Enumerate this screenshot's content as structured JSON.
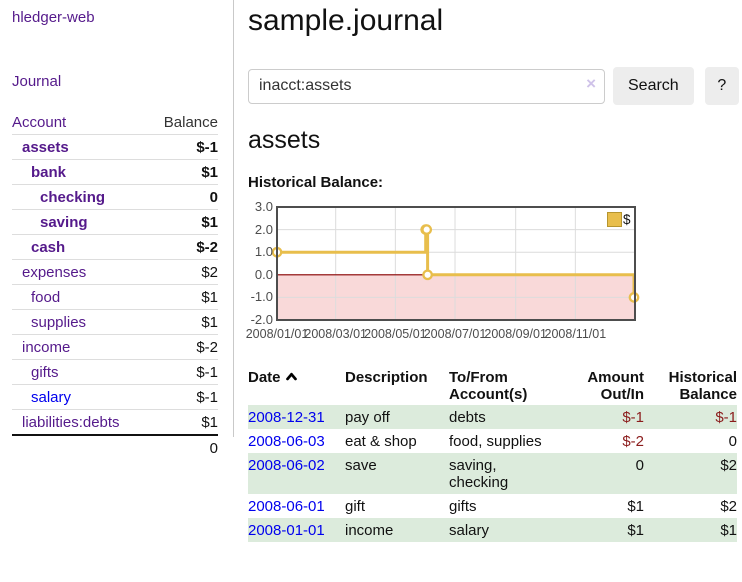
{
  "brand": {
    "label": "hledger-web"
  },
  "nav": {
    "journal": "Journal"
  },
  "sidebar": {
    "header": {
      "account": "Account",
      "balance": "Balance"
    },
    "accounts": [
      {
        "name": "assets",
        "indent": 1,
        "bold": true,
        "balance": "$-1",
        "balance_style": "neg-strong"
      },
      {
        "name": "bank",
        "indent": 2,
        "bold": true,
        "balance": "$1",
        "balance_style": "pos"
      },
      {
        "name": "checking",
        "indent": 3,
        "bold": true,
        "balance": "0",
        "balance_style": "pos"
      },
      {
        "name": "saving",
        "indent": 3,
        "bold": true,
        "balance": "$1",
        "balance_style": "pos"
      },
      {
        "name": "cash",
        "indent": 2,
        "bold": true,
        "balance": "$-2",
        "balance_style": "neg-strong"
      },
      {
        "name": "expenses",
        "indent": 1,
        "bold": false,
        "balance": "$2",
        "balance_style": "pos"
      },
      {
        "name": "food",
        "indent": 2,
        "bold": false,
        "balance": "$1",
        "balance_style": "pos"
      },
      {
        "name": "supplies",
        "indent": 2,
        "bold": false,
        "balance": "$1",
        "balance_style": "pos"
      },
      {
        "name": "income",
        "indent": 1,
        "bold": false,
        "balance": "$-2",
        "balance_style": "neg-soft"
      },
      {
        "name": "gifts",
        "indent": 2,
        "bold": false,
        "balance": "$-1",
        "balance_style": "neg-soft"
      },
      {
        "name": "salary",
        "indent": 2,
        "bold": false,
        "balance": "$-1",
        "balance_style": "neg-soft",
        "unvisited": true
      },
      {
        "name": "liabilities:debts",
        "indent": 1,
        "bold": false,
        "balance": "$1",
        "balance_style": "pos"
      }
    ],
    "total": "0"
  },
  "header": {
    "title": "sample.journal"
  },
  "search": {
    "value": "inacct:assets",
    "clear": "×",
    "button_label": "Search",
    "help_label": "?"
  },
  "account_view": {
    "title": "assets",
    "chart_title": "Historical Balance:"
  },
  "chart_data": {
    "type": "line",
    "step": true,
    "title": "Historical Balance",
    "legend": [
      {
        "label": "$",
        "color": "#e8be4c",
        "swatch": "square-icon"
      }
    ],
    "x_domain": [
      "2008-01-01",
      "2009-01-01"
    ],
    "ylim": [
      -2,
      3
    ],
    "yticks": [
      3.0,
      2.0,
      1.0,
      0.0,
      -1.0,
      -2.0
    ],
    "xticks": [
      {
        "date": "2008-01-01",
        "label": "2008/01/01"
      },
      {
        "date": "2008-03-01",
        "label": "2008/03/01"
      },
      {
        "date": "2008-05-01",
        "label": "2008/05/01"
      },
      {
        "date": "2008-07-01",
        "label": "2008/07/01"
      },
      {
        "date": "2008-09-01",
        "label": "2008/09/01"
      },
      {
        "date": "2008-11-01",
        "label": "2008/11/01"
      }
    ],
    "series": [
      {
        "name": "$",
        "color": "#e8be4c",
        "points": [
          {
            "date": "2008-01-01",
            "value": 1.0
          },
          {
            "date": "2008-06-01",
            "value": 2.0
          },
          {
            "date": "2008-06-02",
            "value": 2.0
          },
          {
            "date": "2008-06-03",
            "value": 0.0
          },
          {
            "date": "2008-12-31",
            "value": -1.0
          }
        ]
      }
    ],
    "negative_region": true,
    "colors": {
      "negative_fill": "#f9d9d9",
      "zero_line": "#8b0000",
      "grid": "#dcdcdc",
      "border": "#4d4d4d"
    }
  },
  "register": {
    "columns": [
      "Date",
      "Description",
      "To/From Account(s)",
      "Amount Out/In",
      "Historical Balance"
    ],
    "sort_icon": "chevron-up-icon",
    "rows": [
      {
        "date": "2008-12-31",
        "description": "pay off",
        "accounts": "debts",
        "amount": "$-1",
        "amount_neg": true,
        "balance": "$-1",
        "balance_neg": true,
        "shaded": true
      },
      {
        "date": "2008-06-03",
        "description": "eat & shop",
        "accounts": "food, supplies",
        "amount": "$-2",
        "amount_neg": true,
        "balance": "0",
        "balance_neg": false,
        "shaded": false
      },
      {
        "date": "2008-06-02",
        "description": "save",
        "accounts": "saving, checking",
        "amount": "0",
        "amount_neg": false,
        "balance": "$2",
        "balance_neg": false,
        "shaded": true
      },
      {
        "date": "2008-06-01",
        "description": "gift",
        "accounts": "gifts",
        "amount": "$1",
        "amount_neg": false,
        "balance": "$2",
        "balance_neg": false,
        "shaded": false
      },
      {
        "date": "2008-01-01",
        "description": "income",
        "accounts": "salary",
        "amount": "$1",
        "amount_neg": false,
        "balance": "$1",
        "balance_neg": false,
        "shaded": true
      }
    ]
  },
  "colors": {
    "link_visited": "#551a8b",
    "link_unvisited": "#0000ee",
    "negative_strong": "#8b1c1c",
    "negative_soft": "#b5616f",
    "row_shade": "#dcebdc",
    "accent_gold": "#e8be4c"
  }
}
